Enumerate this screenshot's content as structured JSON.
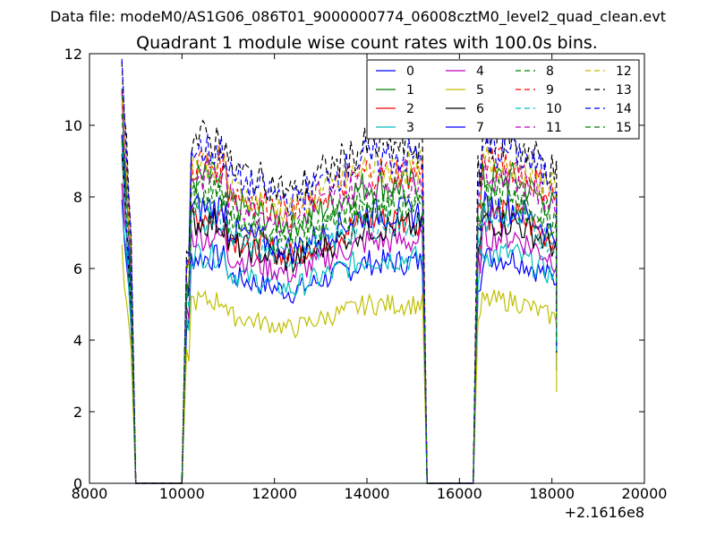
{
  "suptitle": "Data file: modeM0/AS1G06_086T01_9000000774_06008cztM0_level2_quad_clean.evt",
  "chart_data": {
    "type": "line",
    "title": "Quadrant 1 module wise count rates with 100.0s bins.",
    "xlabel": "",
    "ylabel": "",
    "x_offset_label": "+2.1616e8",
    "xlim": [
      8000,
      20000
    ],
    "ylim": [
      0,
      12
    ],
    "xticks": [
      8000,
      10000,
      12000,
      14000,
      16000,
      18000,
      20000
    ],
    "xtick_labels": [
      "8000",
      "10000",
      "12000",
      "14000",
      "16000",
      "18000",
      "20000"
    ],
    "yticks": [
      0,
      2,
      4,
      6,
      8,
      10,
      12
    ],
    "ytick_labels": [
      "0",
      "2",
      "4",
      "6",
      "8",
      "10",
      "12"
    ],
    "grid": false,
    "legend_position": "top-right",
    "legend_columns": 4,
    "segments": [
      {
        "start": 8700,
        "end": 8900
      },
      {
        "start": 10100,
        "end": 15200
      },
      {
        "start": 16400,
        "end": 18100
      }
    ],
    "series": [
      {
        "name": "0",
        "color": "#0000ff",
        "dashed": false,
        "level": 6.3
      },
      {
        "name": "1",
        "color": "#008000",
        "dashed": false,
        "level": 8.5
      },
      {
        "name": "2",
        "color": "#ff0000",
        "dashed": false,
        "level": 7.5
      },
      {
        "name": "3",
        "color": "#00bfbf",
        "dashed": false,
        "level": 6.4
      },
      {
        "name": "4",
        "color": "#bf00bf",
        "dashed": false,
        "level": 6.9
      },
      {
        "name": "5",
        "color": "#bfbf00",
        "dashed": false,
        "level": 5.1
      },
      {
        "name": "6",
        "color": "#000000",
        "dashed": false,
        "level": 7.3
      },
      {
        "name": "7",
        "color": "#0000ff",
        "dashed": false,
        "level": 7.7
      },
      {
        "name": "8",
        "color": "#008000",
        "dashed": true,
        "level": 8.1
      },
      {
        "name": "9",
        "color": "#ff0000",
        "dashed": true,
        "level": 8.9
      },
      {
        "name": "10",
        "color": "#00bfbf",
        "dashed": true,
        "level": 7.4
      },
      {
        "name": "11",
        "color": "#bf00bf",
        "dashed": true,
        "level": 8.6
      },
      {
        "name": "12",
        "color": "#bfbf00",
        "dashed": true,
        "level": 9.0
      },
      {
        "name": "13",
        "color": "#000000",
        "dashed": true,
        "level": 9.6
      },
      {
        "name": "14",
        "color": "#0000ff",
        "dashed": true,
        "level": 9.3
      },
      {
        "name": "15",
        "color": "#008000",
        "dashed": true,
        "level": 7.9
      }
    ]
  }
}
